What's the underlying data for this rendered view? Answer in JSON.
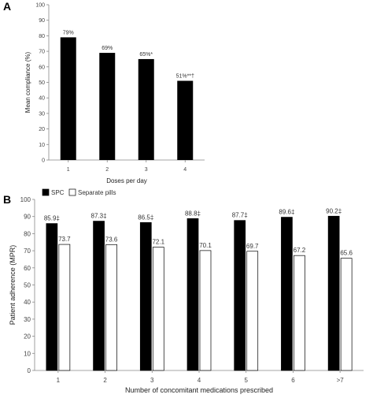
{
  "chart_data": [
    {
      "panel": "A",
      "type": "bar",
      "categories": [
        "1",
        "2",
        "3",
        "4"
      ],
      "values": [
        79,
        69,
        65,
        51
      ],
      "data_labels": [
        "79%",
        "69%",
        "65%*",
        "51%**†"
      ],
      "xlabel": "Doses per day",
      "ylabel": "Mean compliance (%)",
      "ylim": [
        0,
        100
      ],
      "yticks": [
        0,
        10,
        20,
        30,
        40,
        50,
        60,
        70,
        80,
        90,
        100
      ],
      "bar_color": "#000000",
      "grid": false
    },
    {
      "panel": "B",
      "type": "bar",
      "categories": [
        "1",
        "2",
        "3",
        "4",
        "5",
        "6",
        ">7"
      ],
      "series": [
        {
          "name": "SPC",
          "values": [
            85.9,
            87.3,
            86.5,
            88.8,
            87.7,
            89.6,
            90.2
          ],
          "data_labels": [
            "85.9‡",
            "87.3‡",
            "86.5‡",
            "88.8‡",
            "87.7‡",
            "89.6‡",
            "90.2‡"
          ],
          "color": "#000000"
        },
        {
          "name": "Separate pills",
          "values": [
            73.7,
            73.6,
            72.1,
            70.1,
            69.7,
            67.2,
            65.6
          ],
          "data_labels": [
            "73.7",
            "73.6",
            "72.1",
            "70.1",
            "69.7",
            "67.2",
            "65.6"
          ],
          "color": "#ffffff"
        }
      ],
      "xlabel": "Number of concomitant medications prescribed",
      "ylabel": "Patient adherence (MPR)",
      "ylim": [
        0,
        100
      ],
      "yticks": [
        0,
        10,
        20,
        30,
        40,
        50,
        60,
        70,
        80,
        90,
        100
      ],
      "legend": "top-left",
      "grid": false
    }
  ]
}
